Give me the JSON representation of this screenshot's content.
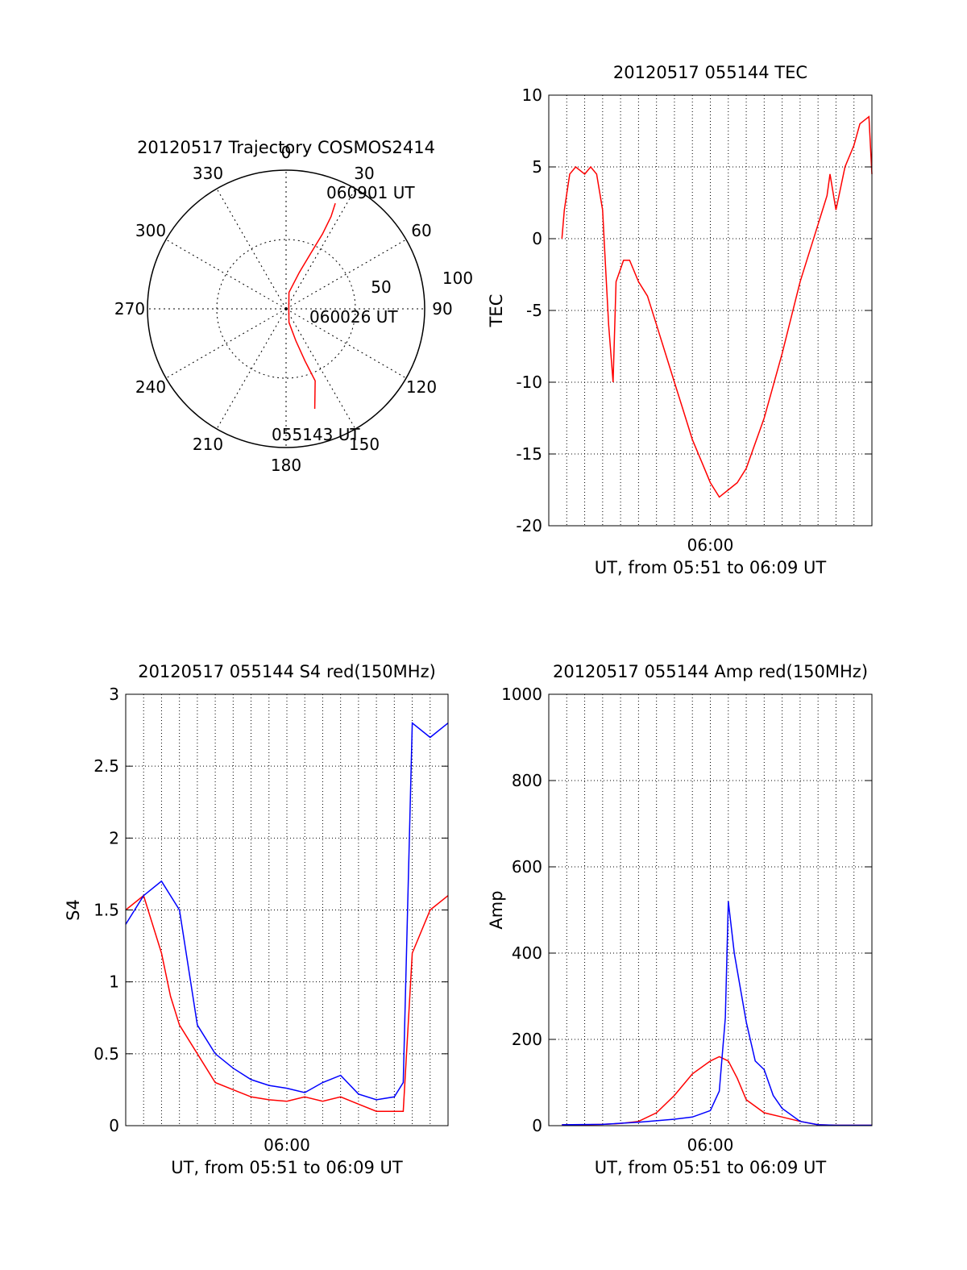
{
  "colors": {
    "red": "#ff0000",
    "blue": "#0000ff",
    "axis": "#000000",
    "grid": "#000000"
  },
  "chart_data": [
    {
      "id": "trajectory",
      "type": "scatter",
      "projection": "polar",
      "title": "20120517 Trajectory COSMOS2414",
      "azimuth_labels": [
        "0",
        "30",
        "60",
        "90",
        "120",
        "150",
        "180",
        "210",
        "240",
        "270",
        "300",
        "330"
      ],
      "radial_rings": [
        50,
        100
      ],
      "radial_labels": [
        "50",
        "100"
      ],
      "track_points": [
        [
          25,
          84
        ],
        [
          26,
          74
        ],
        [
          26,
          60
        ],
        [
          24,
          44
        ],
        [
          20,
          28
        ],
        [
          10,
          12
        ],
        [
          90,
          2
        ],
        [
          168,
          10
        ],
        [
          163,
          24
        ],
        [
          160,
          40
        ],
        [
          158,
          56
        ],
        [
          164,
          75
        ]
      ],
      "annotations": [
        {
          "text": "060901 UT"
        },
        {
          "text": "060026 UT"
        },
        {
          "text": "055143 UT"
        }
      ],
      "grid": true
    },
    {
      "id": "tec",
      "type": "line",
      "title": "20120517 055144 TEC",
      "xlabel": "UT, from 05:51 to 06:09 UT",
      "ylabel": "TEC",
      "x_tick_label": "06:00",
      "xlim": [
        "05:51",
        "06:09"
      ],
      "ylim": [
        -20,
        10
      ],
      "yticks": [
        -20,
        -15,
        -10,
        -5,
        0,
        5,
        10
      ],
      "grid": true,
      "series": [
        {
          "color": "red",
          "x": [
            "05:51:44",
            "05:51:52",
            "05:52:10",
            "05:52:30",
            "05:53:00",
            "05:53:20",
            "05:53:40",
            "05:54:00",
            "05:54:10",
            "05:54:20",
            "05:54:35",
            "05:54:45",
            "05:55:10",
            "05:55:30",
            "05:56:00",
            "05:56:30",
            "05:57:00",
            "05:57:30",
            "05:58:00",
            "05:58:30",
            "05:59:00",
            "05:59:30",
            "06:00:00",
            "06:00:30",
            "06:01:00",
            "06:01:30",
            "06:02:00",
            "06:03:00",
            "06:04:00",
            "06:05:00",
            "06:06:00",
            "06:06:30",
            "06:06:40",
            "06:07:00",
            "06:07:30",
            "06:08:00",
            "06:08:20",
            "06:08:50",
            "06:09:00"
          ],
          "y": [
            0,
            2,
            4.5,
            5,
            4.5,
            5,
            4.5,
            2,
            -2,
            -6,
            -10,
            -3,
            -1.5,
            -1.5,
            -3,
            -4,
            -6,
            -8,
            -10,
            -12,
            -14,
            -15.5,
            -17,
            -18,
            -17.5,
            -17,
            -16,
            -12.5,
            -8,
            -3,
            1,
            3,
            4.5,
            2,
            5,
            6.5,
            8,
            8.5,
            4.5
          ]
        }
      ]
    },
    {
      "id": "s4",
      "type": "line",
      "title": "20120517 055144 S4 red(150MHz)",
      "xlabel": "UT, from 05:51 to 06:09 UT",
      "ylabel": "S4",
      "x_tick_label": "06:00",
      "xlim": [
        "05:51",
        "06:09"
      ],
      "ylim": [
        0,
        3
      ],
      "yticks": [
        0,
        0.5,
        1,
        1.5,
        2,
        2.5,
        3
      ],
      "ytick_labels": [
        "0",
        "0.5",
        "1",
        "1.5",
        "2",
        "2.5",
        "3"
      ],
      "grid": true,
      "series": [
        {
          "color": "red",
          "x": [
            "05:51:00",
            "05:52:00",
            "05:53:00",
            "05:53:30",
            "05:54:00",
            "05:55:00",
            "05:56:00",
            "05:57:00",
            "05:58:00",
            "05:59:00",
            "06:00:00",
            "06:01:00",
            "06:02:00",
            "06:03:00",
            "06:04:00",
            "06:05:00",
            "06:06:00",
            "06:06:30",
            "06:07:00",
            "06:08:00",
            "06:09:00"
          ],
          "y": [
            1.5,
            1.6,
            1.2,
            0.9,
            0.7,
            0.5,
            0.3,
            0.25,
            0.2,
            0.18,
            0.17,
            0.2,
            0.17,
            0.2,
            0.15,
            0.1,
            0.1,
            0.1,
            1.2,
            1.5,
            1.6
          ]
        },
        {
          "color": "blue",
          "x": [
            "05:51:00",
            "05:52:00",
            "05:53:00",
            "05:54:00",
            "05:54:30",
            "05:55:00",
            "05:56:00",
            "05:57:00",
            "05:58:00",
            "05:59:00",
            "06:00:00",
            "06:01:00",
            "06:02:00",
            "06:03:00",
            "06:04:00",
            "06:05:00",
            "06:06:00",
            "06:06:30",
            "06:07:00",
            "06:08:00",
            "06:09:00"
          ],
          "y": [
            1.4,
            1.6,
            1.7,
            1.5,
            1.1,
            0.7,
            0.5,
            0.4,
            0.32,
            0.28,
            0.26,
            0.23,
            0.3,
            0.35,
            0.22,
            0.18,
            0.2,
            0.3,
            2.8,
            2.7,
            2.8
          ]
        }
      ]
    },
    {
      "id": "amp",
      "type": "line",
      "title": "20120517 055144 Amp red(150MHz)",
      "xlabel": "UT, from 05:51 to 06:09 UT",
      "ylabel": "Amp",
      "x_tick_label": "06:00",
      "xlim": [
        "05:51",
        "06:09"
      ],
      "ylim": [
        0,
        1000
      ],
      "yticks": [
        0,
        200,
        400,
        600,
        800,
        1000
      ],
      "grid": true,
      "series": [
        {
          "color": "red",
          "x": [
            "05:51:44",
            "05:53:00",
            "05:54:00",
            "05:55:00",
            "05:56:00",
            "05:57:00",
            "05:58:00",
            "05:59:00",
            "06:00:00",
            "06:00:30",
            "06:01:00",
            "06:01:30",
            "06:02:00",
            "06:03:00",
            "06:04:00",
            "06:05:00",
            "06:06:00",
            "06:07:00",
            "06:08:00",
            "06:09:00"
          ],
          "y": [
            2,
            2,
            3,
            5,
            10,
            30,
            70,
            120,
            150,
            160,
            150,
            110,
            60,
            30,
            20,
            10,
            2,
            1,
            1,
            1
          ]
        },
        {
          "color": "blue",
          "x": [
            "05:51:44",
            "05:54:00",
            "05:56:00",
            "05:58:00",
            "05:59:00",
            "06:00:00",
            "06:00:30",
            "06:00:50",
            "06:01:00",
            "06:01:20",
            "06:01:40",
            "06:02:00",
            "06:02:30",
            "06:03:00",
            "06:03:30",
            "06:04:00",
            "06:05:00",
            "06:06:00",
            "06:07:00",
            "06:08:00",
            "06:09:00"
          ],
          "y": [
            2,
            3,
            8,
            15,
            20,
            35,
            80,
            250,
            520,
            400,
            320,
            240,
            150,
            130,
            70,
            40,
            10,
            2,
            1,
            1,
            1
          ]
        }
      ]
    }
  ]
}
